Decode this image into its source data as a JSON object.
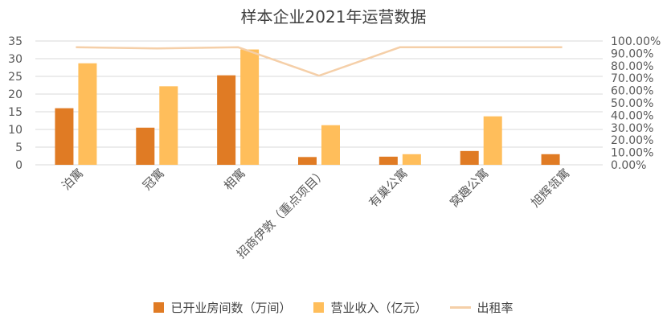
{
  "chart_data": {
    "type": "bar",
    "title": "样本企业2021年运营数据",
    "categories": [
      "泊寓",
      "冠寓",
      "相寓",
      "招商伊敦（重点项目）",
      "有巢公寓",
      "窝趣公寓",
      "旭辉瓴寓"
    ],
    "series": [
      {
        "name": "已开业房间数（万间）",
        "type": "bar",
        "axis": "left",
        "color": "#E07B24",
        "values": [
          16,
          10.5,
          25.3,
          2.2,
          2.3,
          3.9,
          3.0
        ]
      },
      {
        "name": "营业收入（亿元）",
        "type": "bar",
        "axis": "left",
        "color": "#FFBE5B",
        "values": [
          28.7,
          22.2,
          32.6,
          11.2,
          3.0,
          13.7,
          null
        ]
      },
      {
        "name": "出租率",
        "type": "line",
        "axis": "right",
        "color": "#F5CFA8",
        "values": [
          95,
          94,
          95,
          72,
          95,
          95,
          95
        ]
      }
    ],
    "ylim_left": [
      0,
      35
    ],
    "ylim_right": [
      0,
      100
    ],
    "yticks_left": [
      "0",
      "5",
      "10",
      "15",
      "20",
      "25",
      "30",
      "35"
    ],
    "yticks_right": [
      "0.00%",
      "10.00%",
      "20.00%",
      "30.00%",
      "40.00%",
      "50.00%",
      "60.00%",
      "70.00%",
      "80.00%",
      "90.00%",
      "100.00%"
    ],
    "grid": true,
    "legend_position": "bottom"
  },
  "colors": {
    "axis_text": "#595959",
    "grid": "#D9D9D9",
    "title": "#404040"
  }
}
